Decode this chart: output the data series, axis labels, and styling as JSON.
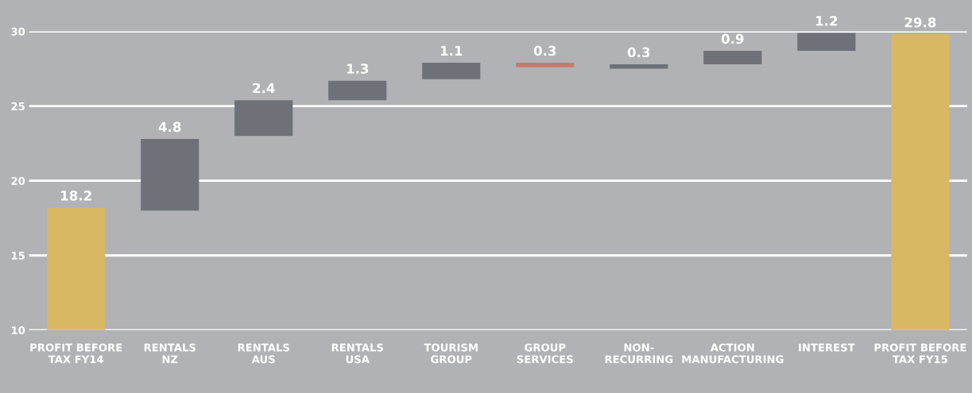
{
  "chart_data": {
    "type": "bar",
    "categories": [
      "PROFIT BEFORE\nTAX FY14",
      "RENTALS\nNZ",
      "RENTALS\nAUS",
      "RENTALS\nUSA",
      "TOURISM\nGROUP",
      "GROUP\nSERVICES",
      "NON-\nRECURRING",
      "ACTION\nMANUFACTURING",
      "INTEREST",
      "PROFIT BEFORE\nTAX FY15"
    ],
    "values": [
      18.2,
      4.8,
      2.4,
      1.3,
      1.1,
      -0.3,
      0.3,
      0.9,
      1.2,
      29.8
    ],
    "base": [
      0,
      18.0,
      23.0,
      25.4,
      26.8,
      27.9,
      27.5,
      27.8,
      28.7,
      0
    ],
    "colors": [
      "#d8b862",
      "#6f7179",
      "#6f7179",
      "#6f7179",
      "#6f7179",
      "#c67b6a",
      "#6f7179",
      "#6f7179",
      "#6f7179",
      "#d8b862"
    ],
    "value_labels": [
      "18.2",
      "4.8",
      "2.4",
      "1.3",
      "1.1",
      "0.3",
      "0.3",
      "0.9",
      "1.2",
      "29.8"
    ],
    "ylim": [
      10,
      30
    ],
    "yticks": [
      10,
      15,
      20,
      25,
      30
    ],
    "grid": "y"
  }
}
